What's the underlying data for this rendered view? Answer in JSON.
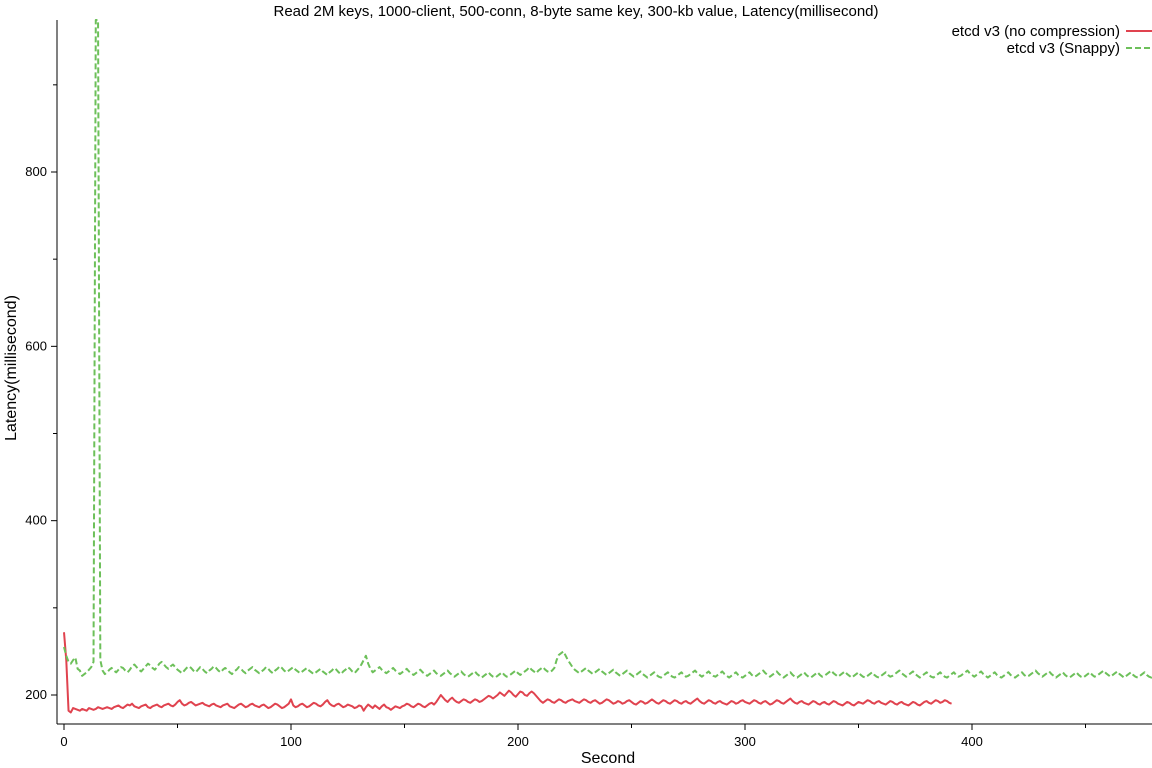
{
  "chart_data": {
    "type": "line",
    "title": "Read 2M keys, 1000-client, 500-conn, 8-byte same key, 300-kb value, Latency(millisecond)",
    "xlabel": "Second",
    "ylabel": "Latency(millisecond)",
    "xlim": [
      0,
      480
    ],
    "ylim": [
      178,
      975
    ],
    "xticks": [
      0,
      100,
      200,
      300,
      400
    ],
    "yticks": [
      200,
      400,
      600,
      800
    ],
    "x_minor_ticks": [
      50,
      150,
      250,
      350,
      450
    ],
    "y_minor_ticks": [
      300,
      500,
      700,
      900
    ],
    "grid": false,
    "legend_position": "top-right",
    "series": [
      {
        "name": "etcd v3 (no compression)",
        "color": "#e0434f",
        "dash": "solid",
        "x_start": 0,
        "x_step": 1,
        "values": [
          272,
          240,
          182,
          180,
          185,
          184,
          183,
          182,
          184,
          183,
          182,
          185,
          184,
          183,
          184,
          186,
          185,
          184,
          185,
          186,
          185,
          184,
          186,
          187,
          188,
          186,
          185,
          187,
          189,
          188,
          190,
          187,
          186,
          185,
          187,
          188,
          189,
          186,
          185,
          187,
          188,
          189,
          187,
          186,
          188,
          189,
          190,
          188,
          187,
          189,
          192,
          194,
          190,
          188,
          189,
          191,
          192,
          190,
          188,
          189,
          190,
          191,
          189,
          188,
          187,
          189,
          190,
          188,
          187,
          186,
          188,
          189,
          190,
          187,
          186,
          185,
          187,
          189,
          190,
          188,
          186,
          187,
          189,
          190,
          188,
          187,
          186,
          188,
          189,
          187,
          185,
          186,
          188,
          190,
          189,
          187,
          185,
          186,
          188,
          190,
          195,
          188,
          186,
          187,
          189,
          190,
          188,
          186,
          187,
          189,
          191,
          190,
          188,
          187,
          189,
          192,
          194,
          190,
          188,
          187,
          189,
          190,
          188,
          186,
          187,
          189,
          188,
          187,
          185,
          186,
          188,
          187,
          182,
          186,
          189,
          187,
          185,
          188,
          186,
          184,
          187,
          189,
          186,
          185,
          183,
          185,
          187,
          186,
          185,
          187,
          188,
          190,
          189,
          187,
          186,
          188,
          190,
          189,
          187,
          186,
          188,
          190,
          191,
          189,
          192,
          196,
          200,
          197,
          194,
          192,
          195,
          197,
          194,
          192,
          191,
          193,
          195,
          194,
          192,
          191,
          193,
          195,
          194,
          192,
          193,
          195,
          197,
          199,
          198,
          196,
          198,
          200,
          203,
          201,
          199,
          202,
          205,
          203,
          200,
          198,
          201,
          204,
          203,
          200,
          199,
          202,
          204,
          202,
          199,
          196,
          193,
          191,
          193,
          195,
          194,
          192,
          191,
          193,
          195,
          194,
          192,
          191,
          193,
          194,
          195,
          193,
          192,
          191,
          193,
          195,
          194,
          192,
          191,
          193,
          194,
          192,
          190,
          191,
          193,
          195,
          194,
          192,
          190,
          191,
          193,
          192,
          190,
          191,
          193,
          194,
          192,
          190,
          189,
          191,
          193,
          192,
          190,
          191,
          193,
          195,
          193,
          191,
          190,
          192,
          194,
          193,
          191,
          190,
          192,
          194,
          193,
          191,
          190,
          192,
          193,
          191,
          190,
          192,
          194,
          196,
          193,
          191,
          190,
          192,
          194,
          193,
          191,
          190,
          192,
          193,
          191,
          190,
          189,
          191,
          193,
          192,
          190,
          191,
          193,
          194,
          192,
          191,
          190,
          192,
          194,
          193,
          191,
          190,
          192,
          193,
          191,
          189,
          190,
          192,
          194,
          193,
          191,
          190,
          192,
          194,
          196,
          193,
          191,
          190,
          192,
          193,
          191,
          190,
          189,
          191,
          193,
          192,
          190,
          189,
          191,
          192,
          190,
          189,
          191,
          193,
          192,
          190,
          189,
          188,
          190,
          192,
          191,
          189,
          188,
          190,
          192,
          191,
          190,
          192,
          194,
          193,
          191,
          190,
          192,
          193,
          191,
          190,
          189,
          191,
          193,
          192,
          190,
          189,
          191,
          192,
          190,
          189,
          188,
          190,
          192,
          191,
          189,
          188,
          190,
          192,
          193,
          191,
          190,
          192,
          194,
          193,
          191,
          192,
          194,
          193,
          191,
          190
        ]
      },
      {
        "name": "etcd v3 (Snappy)",
        "color": "#6dc05a",
        "dash": "6,3",
        "x_start": 0,
        "x_step": 1,
        "values": [
          255,
          245,
          238,
          236,
          240,
          243,
          230,
          228,
          222,
          224,
          226,
          229,
          232,
          238,
          975,
          975,
          240,
          228,
          224,
          226,
          229,
          231,
          228,
          226,
          229,
          232,
          231,
          228,
          226,
          229,
          233,
          235,
          232,
          229,
          227,
          230,
          233,
          236,
          234,
          231,
          229,
          232,
          236,
          238,
          235,
          232,
          230,
          233,
          235,
          232,
          229,
          227,
          225,
          228,
          231,
          233,
          231,
          228,
          226,
          229,
          232,
          230,
          227,
          225,
          228,
          230,
          233,
          231,
          228,
          226,
          229,
          231,
          229,
          226,
          224,
          227,
          229,
          232,
          230,
          227,
          225,
          228,
          230,
          232,
          229,
          227,
          225,
          227,
          229,
          232,
          230,
          227,
          225,
          228,
          230,
          233,
          231,
          228,
          226,
          228,
          230,
          232,
          229,
          227,
          225,
          227,
          229,
          231,
          228,
          226,
          224,
          226,
          228,
          230,
          227,
          225,
          223,
          226,
          228,
          231,
          229,
          226,
          224,
          227,
          229,
          232,
          230,
          227,
          225,
          228,
          231,
          235,
          240,
          245,
          236,
          230,
          226,
          228,
          230,
          232,
          229,
          227,
          225,
          227,
          229,
          231,
          228,
          226,
          224,
          226,
          228,
          230,
          227,
          225,
          223,
          225,
          227,
          229,
          226,
          224,
          222,
          224,
          226,
          228,
          225,
          223,
          222,
          224,
          226,
          228,
          225,
          223,
          221,
          223,
          225,
          227,
          224,
          222,
          221,
          223,
          225,
          227,
          224,
          222,
          220,
          222,
          224,
          226,
          223,
          221,
          220,
          222,
          224,
          226,
          223,
          221,
          222,
          224,
          226,
          228,
          225,
          223,
          225,
          227,
          229,
          232,
          229,
          227,
          225,
          228,
          230,
          232,
          229,
          227,
          226,
          228,
          231,
          240,
          246,
          248,
          250,
          245,
          240,
          236,
          232,
          229,
          227,
          225,
          227,
          229,
          231,
          228,
          226,
          224,
          226,
          228,
          230,
          227,
          225,
          223,
          225,
          227,
          229,
          226,
          224,
          222,
          224,
          226,
          228,
          225,
          223,
          221,
          223,
          225,
          227,
          224,
          222,
          220,
          222,
          224,
          226,
          223,
          221,
          220,
          222,
          224,
          226,
          223,
          221,
          220,
          222,
          224,
          226,
          223,
          221,
          222,
          224,
          226,
          228,
          225,
          223,
          221,
          223,
          225,
          227,
          224,
          222,
          221,
          223,
          225,
          227,
          224,
          222,
          220,
          222,
          224,
          226,
          223,
          221,
          220,
          222,
          224,
          226,
          223,
          221,
          222,
          224,
          226,
          228,
          225,
          223,
          221,
          223,
          225,
          227,
          224,
          222,
          220,
          222,
          224,
          226,
          223,
          221,
          220,
          222,
          224,
          226,
          223,
          221,
          220,
          222,
          224,
          226,
          223,
          221,
          222,
          224,
          226,
          228,
          225,
          223,
          221,
          223,
          225,
          227,
          224,
          222,
          220,
          222,
          224,
          226,
          223,
          221,
          220,
          222,
          224,
          226,
          223,
          221,
          220,
          222,
          224,
          226,
          223,
          221,
          222,
          224,
          226,
          228,
          225,
          223,
          221,
          223,
          225,
          227,
          224,
          222,
          220,
          222,
          224,
          226,
          223,
          221,
          220,
          222,
          224,
          226,
          223,
          221,
          220,
          222,
          224,
          226,
          223,
          221,
          222,
          224,
          226,
          228,
          225,
          223,
          221,
          223,
          225,
          227,
          224,
          222,
          220,
          222,
          224,
          226,
          223,
          221,
          220,
          222,
          224,
          226,
          223,
          221,
          220,
          222,
          224,
          226,
          223,
          221,
          222,
          224,
          226,
          228,
          225,
          223,
          221,
          223,
          225,
          227,
          224,
          222,
          220,
          222,
          224,
          226,
          223,
          221,
          220,
          222,
          224,
          226,
          223,
          221,
          220,
          222,
          224,
          226,
          223,
          221,
          222,
          224,
          226,
          228,
          225,
          223,
          221,
          223,
          225,
          227,
          224,
          222,
          220,
          222,
          224,
          226,
          223,
          221,
          220,
          222,
          224,
          226,
          223,
          221,
          220,
          222
        ]
      }
    ]
  }
}
